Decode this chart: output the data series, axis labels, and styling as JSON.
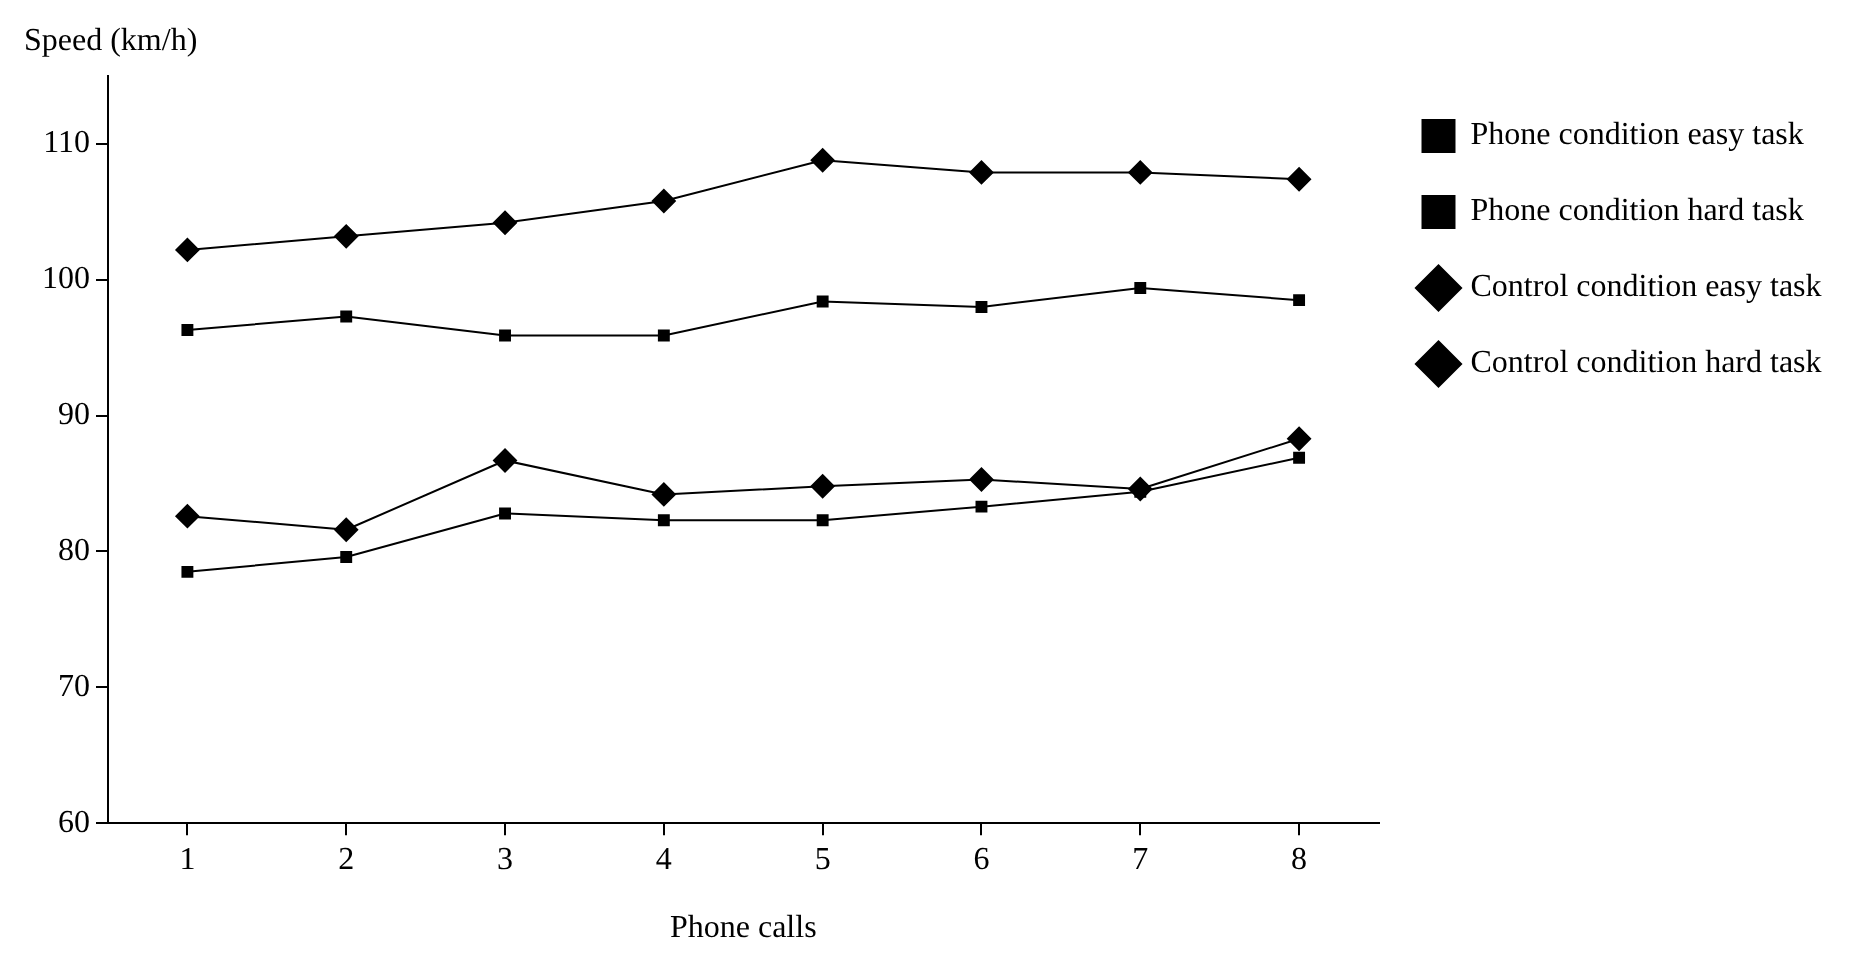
{
  "chart_data": {
    "type": "line",
    "ylabel": "Speed (km/h)",
    "xlabel": "Phone calls",
    "categories": [
      "1",
      "2",
      "3",
      "4",
      "5",
      "6",
      "7",
      "8"
    ],
    "series": [
      {
        "name": "Phone condition easy task",
        "color": "#000000",
        "marker": "square",
        "values": [
          96.3,
          97.3,
          95.9,
          95.9,
          98.4,
          98.0,
          99.4,
          98.5
        ]
      },
      {
        "name": "Phone condition hard task",
        "color": "#000000",
        "marker": "square",
        "values": [
          78.5,
          79.6,
          82.8,
          82.3,
          82.3,
          83.3,
          84.4,
          86.9
        ]
      },
      {
        "name": "Control condition easy task",
        "color": "#000000",
        "marker": "diamond",
        "values": [
          102.2,
          103.2,
          104.2,
          105.8,
          108.8,
          107.9,
          107.9,
          107.4
        ]
      },
      {
        "name": "Control condition hard task",
        "color": "#000000",
        "marker": "diamond",
        "values": [
          82.6,
          81.6,
          86.7,
          84.2,
          84.8,
          85.3,
          84.6,
          88.3
        ]
      }
    ],
    "ylim": [
      60,
      115
    ],
    "yticks": [
      60,
      70,
      80,
      90,
      100,
      110
    ],
    "grid": false,
    "legend": "right"
  }
}
